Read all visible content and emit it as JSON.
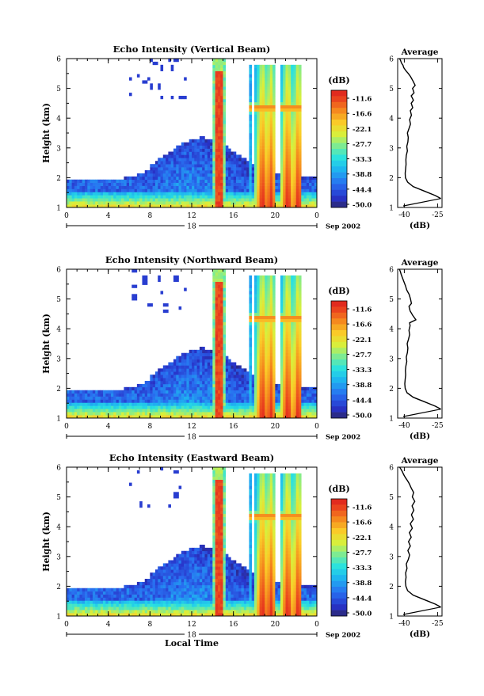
{
  "chart_data": [
    {
      "type": "heatmap",
      "title": "Echo Intensity (Vertical Beam)",
      "ylabel": "Height (km)",
      "xlabel": "",
      "xticks": [
        "0",
        "4",
        "8",
        "12",
        "16",
        "20",
        "0"
      ],
      "yticks": [
        "1",
        "2",
        "3",
        "4",
        "5",
        "6"
      ],
      "date_left": "18",
      "date_right": "Sep 2002",
      "xlim": [
        0,
        24
      ],
      "ylim": [
        1,
        6
      ],
      "colorbar": {
        "unit": "(dB)",
        "labels": [
          "-11.6",
          "-16.6",
          "-22.1",
          "-27.7",
          "-33.3",
          "-38.8",
          "-44.4",
          "-50.0"
        ],
        "range": [
          -50,
          -11
        ]
      },
      "average_profile": {
        "title": "Average",
        "xlabel": "(dB)",
        "xticks": [
          "-40",
          "-25"
        ],
        "yticks": [
          "1",
          "2",
          "3",
          "4",
          "5",
          "6"
        ],
        "xlim": [
          -43,
          -23
        ],
        "ylim": [
          1,
          6
        ],
        "x": [
          -23.5,
          -26,
          -31,
          -36,
          -38.5,
          -39.5,
          -39.6,
          -39.4,
          -39.2,
          -39.3,
          -39.1,
          -38.6,
          -38.9,
          -38.4,
          -38.2,
          -38.6,
          -37.9,
          -37.2,
          -37.6,
          -36.8,
          -37.3,
          -36.2,
          -36.9,
          -35.9,
          -36.9,
          -35.6,
          -36.3,
          -35.1,
          -36.1,
          -37.2,
          -38.2,
          -39.4,
          -40.3,
          -40.6,
          -41.3,
          -41.6,
          -42.1
        ],
        "y": [
          1.3,
          1.4,
          1.55,
          1.7,
          1.85,
          2.0,
          2.15,
          2.3,
          2.45,
          2.6,
          2.75,
          2.9,
          3.05,
          3.2,
          3.35,
          3.5,
          3.65,
          3.8,
          3.95,
          4.1,
          4.25,
          4.35,
          4.5,
          4.6,
          4.75,
          4.85,
          5.0,
          5.1,
          5.25,
          5.4,
          5.5,
          5.6,
          5.7,
          5.78,
          5.85,
          5.92,
          6.0
        ]
      }
    },
    {
      "type": "heatmap",
      "title": "Echo Intensity (Northward Beam)",
      "ylabel": "Height (km)",
      "xlabel": "",
      "xticks": [
        "0",
        "4",
        "8",
        "12",
        "16",
        "20",
        "0"
      ],
      "yticks": [
        "1",
        "2",
        "3",
        "4",
        "5",
        "6"
      ],
      "date_left": "18",
      "date_right": "Sep 2002",
      "xlim": [
        0,
        24
      ],
      "ylim": [
        1,
        6
      ],
      "colorbar": {
        "unit": "(dB)",
        "labels": [
          "-11.6",
          "-16.6",
          "-22.1",
          "-27.7",
          "-33.3",
          "-38.8",
          "-44.4",
          "-50.0"
        ],
        "range": [
          -50,
          -11
        ]
      },
      "average_profile": {
        "title": "Average",
        "xlabel": "(dB)",
        "xticks": [
          "-40",
          "-25"
        ],
        "yticks": [
          "1",
          "2",
          "3",
          "4",
          "5",
          "6"
        ],
        "xlim": [
          -43,
          -23
        ],
        "ylim": [
          1,
          6
        ],
        "x": [
          -23.5,
          -26,
          -31,
          -36,
          -38.8,
          -39.6,
          -39.8,
          -39.6,
          -39.4,
          -39.5,
          -39.3,
          -38.9,
          -39.1,
          -38.6,
          -38.4,
          -38.7,
          -38.1,
          -37.6,
          -37.9,
          -37.4,
          -37.6,
          -34.8,
          -36.2,
          -37.4,
          -37.9,
          -36.8,
          -37.2,
          -37.8,
          -38.9,
          -39.5,
          -40.3,
          -40.9,
          -41.4,
          -41.8,
          -42.2
        ],
        "y": [
          1.3,
          1.4,
          1.55,
          1.7,
          1.85,
          2.0,
          2.15,
          2.3,
          2.45,
          2.6,
          2.75,
          2.9,
          3.05,
          3.2,
          3.35,
          3.5,
          3.65,
          3.8,
          3.95,
          4.1,
          4.2,
          4.3,
          4.45,
          4.6,
          4.75,
          4.85,
          5.0,
          5.15,
          5.3,
          5.45,
          5.6,
          5.72,
          5.82,
          5.92,
          6.0
        ]
      }
    },
    {
      "type": "heatmap",
      "title": "Echo Intensity (Eastward Beam)",
      "ylabel": "Height (km)",
      "xlabel": "Local Time",
      "xticks": [
        "0",
        "4",
        "8",
        "12",
        "16",
        "20",
        "0"
      ],
      "yticks": [
        "1",
        "2",
        "3",
        "4",
        "5",
        "6"
      ],
      "date_left": "18",
      "date_right": "Sep 2002",
      "xlim": [
        0,
        24
      ],
      "ylim": [
        1,
        6
      ],
      "colorbar": {
        "unit": "(dB)",
        "labels": [
          "-11.6",
          "-16.6",
          "-22.1",
          "-27.7",
          "-33.3",
          "-38.8",
          "-44.4",
          "-50.0"
        ],
        "range": [
          -50,
          -11
        ]
      },
      "average_profile": {
        "title": "Average",
        "xlabel": "(dB)",
        "xticks": [
          "-40",
          "-25"
        ],
        "yticks": [
          "1",
          "2",
          "3",
          "4",
          "5",
          "6"
        ],
        "xlim": [
          -43,
          -23
        ],
        "ylim": [
          1,
          6
        ],
        "x": [
          -23.5,
          -26,
          -31,
          -36,
          -38.5,
          -39.3,
          -39.5,
          -39.2,
          -39.4,
          -38.8,
          -39.1,
          -38.2,
          -37.6,
          -38.4,
          -37.3,
          -38.1,
          -36.9,
          -37.7,
          -36.4,
          -37.3,
          -35.9,
          -36.8,
          -35.7,
          -36.5,
          -35.3,
          -36.4,
          -35.8,
          -36.9,
          -37.8,
          -38.6,
          -39.5,
          -40.3,
          -40.9,
          -41.5,
          -42.1
        ],
        "y": [
          1.3,
          1.4,
          1.55,
          1.7,
          1.85,
          2.0,
          2.15,
          2.3,
          2.45,
          2.6,
          2.75,
          2.9,
          3.05,
          3.2,
          3.35,
          3.5,
          3.65,
          3.8,
          3.95,
          4.1,
          4.25,
          4.4,
          4.55,
          4.7,
          4.85,
          5.0,
          5.15,
          5.3,
          5.45,
          5.55,
          5.65,
          5.75,
          5.85,
          5.93,
          6.0
        ]
      }
    }
  ]
}
